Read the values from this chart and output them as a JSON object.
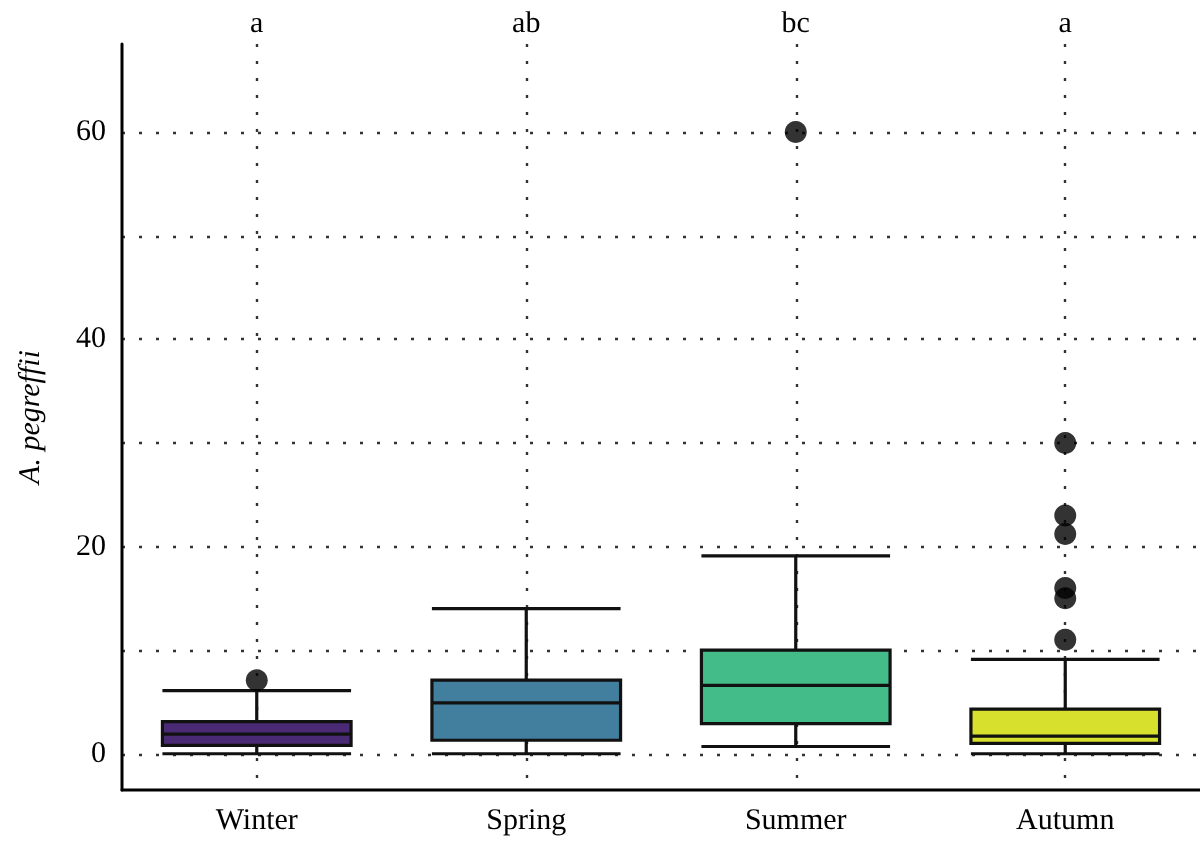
{
  "chart_data": {
    "type": "box",
    "ylabel": "A. pegreffii",
    "categories": [
      "Winter",
      "Spring",
      "Summer",
      "Autumn"
    ],
    "series": [
      {
        "colors": [
          "#4b2a75",
          "#427e9d",
          "#44bc8a",
          "#d7e02d"
        ],
        "boxes": [
          {
            "low": 0,
            "q1": 0.8,
            "median": 1.9,
            "q3": 3.1,
            "high": 6.1,
            "outliers": [
              7.1
            ]
          },
          {
            "low": 0,
            "q1": 1.3,
            "median": 4.9,
            "q3": 7.1,
            "high": 14
          },
          {
            "low": 0.7,
            "q1": 2.9,
            "median": 6.6,
            "q3": 10,
            "high": 19.1,
            "outliers": [
              60
            ]
          },
          {
            "low": 0,
            "q1": 1.0,
            "median": 1.7,
            "q3": 4.3,
            "high": 9.1,
            "outliers": [
              11,
              15,
              16,
              21.2,
              23,
              30
            ]
          }
        ]
      }
    ],
    "ylim": [
      -3.5,
      68.5
    ],
    "yticks": [
      0,
      {
        "value": 10,
        "label": null
      },
      20,
      {
        "value": 30,
        "label": null
      },
      40,
      {
        "value": 50,
        "label": null
      },
      60
    ],
    "grid": true,
    "annotations": [
      "a",
      "ab",
      "bc",
      "a"
    ]
  }
}
